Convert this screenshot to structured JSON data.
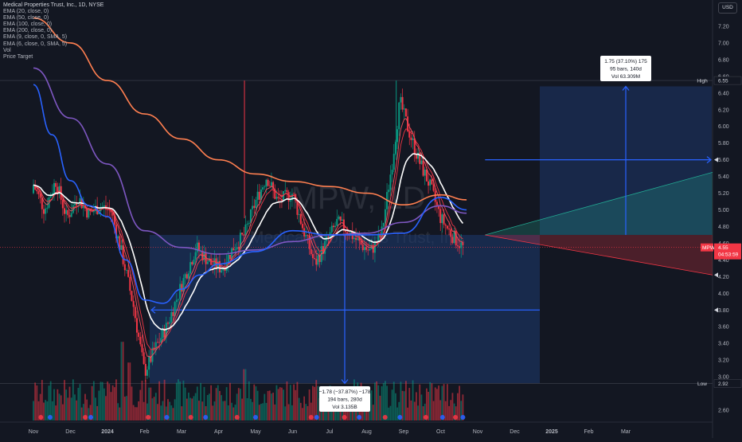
{
  "chart_data": {
    "type": "candlestick",
    "title": "Medical Properties Trust, Inc., 1D, NYSE",
    "ticker": "MPW",
    "watermark": "MPW, 1D",
    "watermark_sub": "Medical Properties Trust, Inc.",
    "currency": "USD",
    "indicators": [
      {
        "name": "EMA (20, close, 0)",
        "color": "#ffffff"
      },
      {
        "name": "EMA (50, close, 0)",
        "color": "#2962ff"
      },
      {
        "name": "EMA (100, close, 0)",
        "color": "#7e57c2"
      },
      {
        "name": "EMA (200, close, 0)",
        "color": "#ff7f50"
      },
      {
        "name": "EMA (9, close, 0, SMA, 5)",
        "color": "#f23645"
      },
      {
        "name": "EMA (6, close, 0, SMA, 5)",
        "color": "#f7525f"
      },
      {
        "name": "Vol",
        "color": "#089981"
      },
      {
        "name": "Price Target",
        "color": "#2962ff"
      }
    ],
    "y_ticks": [
      "7.20",
      "7.00",
      "6.80",
      "6.60",
      "6.40",
      "6.20",
      "6.00",
      "5.80",
      "5.60",
      "5.40",
      "5.20",
      "5.00",
      "4.80",
      "4.60",
      "4.40",
      "4.20",
      "4.00",
      "3.80",
      "3.60",
      "3.40",
      "3.20",
      "3.00",
      "2.60"
    ],
    "ylim": [
      2.5,
      7.4
    ],
    "x_ticks": [
      "Nov",
      "Dec",
      "2024",
      "Feb",
      "Mar",
      "Apr",
      "May",
      "Jun",
      "Jul",
      "Aug",
      "Sep",
      "Oct",
      "Nov",
      "Dec",
      "2025",
      "Feb",
      "Mar"
    ],
    "x_tick_pos": [
      0,
      1,
      2,
      3,
      4,
      5,
      6,
      7,
      8,
      9,
      10,
      11,
      12,
      13,
      14,
      15,
      16
    ],
    "high_label": "High",
    "high_value": "6.55",
    "low_label": "Low",
    "low_value": "2.92",
    "last_price": "4.55",
    "last_timer": "04:53:59",
    "price_levels": [
      6.55,
      2.92
    ],
    "measure_up": {
      "line1": "1.75 (37.10%) 175",
      "line2": "95 bars, 140d",
      "line3": "Vol 63.309M"
    },
    "measure_down": {
      "line1": "−1.78 (−37.87%) −178",
      "line2": "194 bars, 280d",
      "line3": "Vol 3.135B"
    },
    "target_up": 5.6,
    "target_down": 3.8,
    "ema_series": [
      {
        "name": "EMA 200",
        "color": "#ff7f50",
        "x": [
          0,
          1,
          2,
          3,
          4,
          5,
          6,
          7,
          8,
          9,
          10,
          11,
          11.7
        ],
        "y": [
          7.3,
          7.0,
          6.55,
          6.15,
          5.85,
          5.6,
          5.43,
          5.34,
          5.28,
          5.2,
          5.06,
          5.18,
          5.12
        ]
      },
      {
        "name": "EMA 100",
        "color": "#7e57c2",
        "x": [
          0,
          1,
          2,
          3,
          4,
          5,
          6,
          7,
          8,
          9,
          10,
          11,
          11.7
        ],
        "y": [
          6.7,
          6.1,
          5.55,
          4.75,
          4.55,
          4.47,
          4.52,
          4.62,
          4.7,
          4.72,
          4.85,
          5.05,
          4.96
        ]
      },
      {
        "name": "EMA 50",
        "color": "#2962ff",
        "x": [
          0,
          0.5,
          1,
          1.5,
          2,
          2.5,
          3,
          3.5,
          4,
          4.5,
          5,
          6,
          7,
          8,
          9,
          10,
          11,
          11.7
        ],
        "y": [
          6.5,
          5.9,
          5.35,
          5.05,
          4.92,
          4.4,
          3.92,
          3.88,
          4.05,
          4.22,
          4.35,
          4.5,
          4.75,
          4.7,
          4.7,
          4.72,
          5.15,
          5.0
        ]
      }
    ],
    "ohlc_seed": "derived",
    "volume_ylim": [
      0,
      1
    ]
  }
}
